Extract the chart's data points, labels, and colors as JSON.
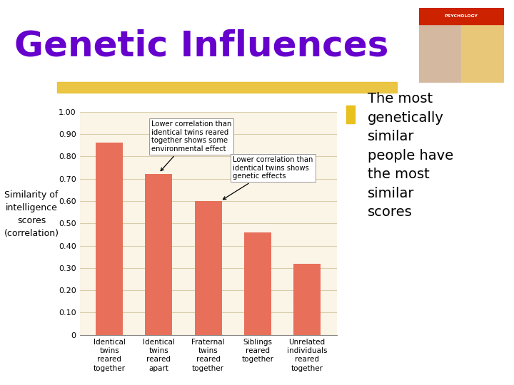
{
  "title": "Genetic Influences",
  "title_color": "#6600CC",
  "title_fontsize": 36,
  "categories": [
    "Identical\ntwins\nreared\ntogether",
    "Identical\ntwins\nreared\napart",
    "Fraternal\ntwins\nreared\ntogether",
    "Siblings\nreared\ntogether",
    "Unrelated\nindividuals\nreared\ntogether"
  ],
  "values": [
    0.86,
    0.72,
    0.6,
    0.46,
    0.32
  ],
  "bar_color": "#E8705A",
  "ylabel_lines": [
    "Similarity of",
    "intelligence",
    "scores",
    "(correlation)"
  ],
  "ylim": [
    0,
    1.0
  ],
  "yticks": [
    0,
    0.1,
    0.2,
    0.3,
    0.4,
    0.5,
    0.6,
    0.7,
    0.8,
    0.9,
    1.0
  ],
  "chart_bg": "#FBF5E8",
  "slide_bg": "#FFFFFF",
  "annotation1_text": "Lower correlation than\nidentical twins reared\ntogether shows some\nenvironmental effect",
  "annotation2_text": "Lower correlation than\nidentical twins shows\ngenetic effects",
  "bullet_text": "The most\ngenetically\nsimilar\npeople have\nthe most\nsimilar\nscores",
  "bullet_color": "#E8C020",
  "stripe_color": "#E8C030",
  "grid_color": "#D8CCAA"
}
